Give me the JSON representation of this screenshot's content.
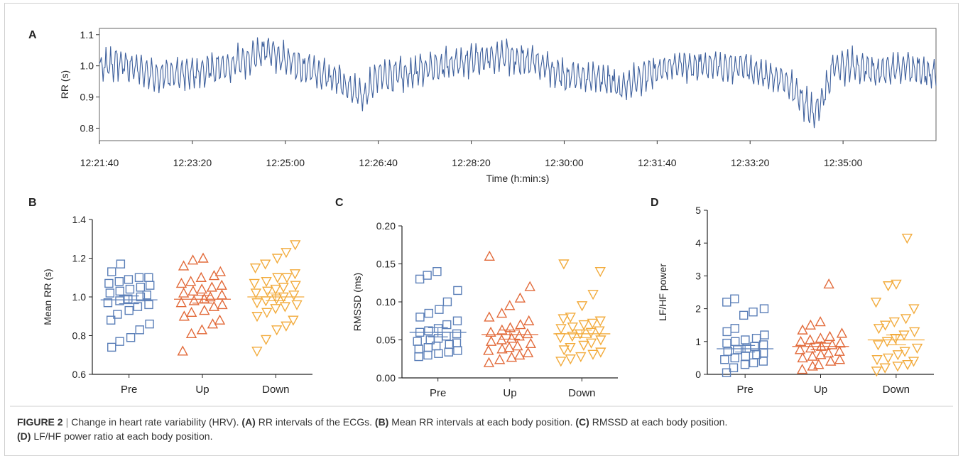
{
  "caption": {
    "figure_label": "FIGURE 2",
    "separator": "|",
    "title": "Change in heart rate variability (HRV).",
    "parts": [
      {
        "label": "(A)",
        "text": "RR intervals of the ECGs."
      },
      {
        "label": "(B)",
        "text": "Mean RR intervals at each body position."
      },
      {
        "label": "(C)",
        "text": "RMSSD at each body position."
      },
      {
        "label": "(D)",
        "text": "LF/HF power ratio at each body position."
      }
    ]
  },
  "colors": {
    "pre": "#5b7fb8",
    "up": "#e26a3a",
    "down": "#f2ab3c",
    "line": "#3d5f9c",
    "axis": "#222222"
  },
  "chart_data": [
    {
      "panel": "A",
      "type": "line",
      "xlabel": "Time (h:min:s)",
      "ylabel": "RR (s)",
      "xticks": [
        "12:21:40",
        "12:23:20",
        "12:25:00",
        "12:26:40",
        "12:28:20",
        "12:30:00",
        "12:31:40",
        "12:33:20",
        "12:35:00"
      ],
      "xlim_seconds_from_first_tick": [
        0,
        900
      ],
      "yticks": [
        "0.8",
        "0.9",
        "1.0",
        "1.1"
      ],
      "ylim": [
        0.76,
        1.12
      ],
      "trend_keypoints": {
        "t": [
          0,
          20,
          60,
          100,
          140,
          180,
          220,
          260,
          285,
          300,
          330,
          360,
          400,
          440,
          470,
          500,
          540,
          560,
          590,
          620,
          660,
          700,
          740,
          770,
          790,
          810,
          840,
          870,
          900
        ],
        "rr": [
          0.99,
          1.01,
          0.97,
          0.975,
          1.0,
          1.05,
          0.99,
          0.95,
          0.9,
          0.97,
          0.97,
          1.0,
          1.02,
          1.03,
          1.01,
          0.97,
          0.96,
          0.93,
          0.97,
          1.0,
          1.0,
          0.99,
          0.95,
          0.84,
          1.0,
          1.0,
          0.98,
          1.0,
          0.97
        ]
      },
      "grid": false
    },
    {
      "panel": "B",
      "type": "scatter",
      "ylabel": "Mean RR (s)",
      "categories": [
        "Pre",
        "Up",
        "Down"
      ],
      "ylim": [
        0.6,
        1.4
      ],
      "yticks": [
        "0.6",
        "0.8",
        "1.0",
        "1.2",
        "1.4"
      ],
      "series": [
        {
          "name": "Pre",
          "marker": "square",
          "mean": 0.985,
          "sem": 0.02,
          "values": [
            0.74,
            0.77,
            0.79,
            0.83,
            0.86,
            0.88,
            0.91,
            0.93,
            0.95,
            0.96,
            0.97,
            0.98,
            0.99,
            1.0,
            1.01,
            1.02,
            1.03,
            1.04,
            1.05,
            1.06,
            1.07,
            1.08,
            1.09,
            1.1,
            1.1,
            1.13,
            1.17
          ]
        },
        {
          "name": "Up",
          "marker": "triangle-up",
          "mean": 0.988,
          "sem": 0.02,
          "values": [
            0.72,
            0.81,
            0.83,
            0.86,
            0.88,
            0.9,
            0.92,
            0.93,
            0.95,
            0.96,
            0.97,
            0.98,
            0.99,
            1.0,
            1.01,
            1.02,
            1.03,
            1.04,
            1.05,
            1.06,
            1.07,
            1.08,
            1.1,
            1.11,
            1.13,
            1.16,
            1.19,
            1.2
          ]
        },
        {
          "name": "Down",
          "marker": "triangle-down",
          "mean": 1.0,
          "sem": 0.02,
          "values": [
            0.72,
            0.78,
            0.83,
            0.85,
            0.88,
            0.9,
            0.92,
            0.94,
            0.95,
            0.96,
            0.97,
            0.98,
            0.99,
            1.0,
            1.01,
            1.02,
            1.03,
            1.04,
            1.05,
            1.06,
            1.07,
            1.08,
            1.1,
            1.1,
            1.12,
            1.15,
            1.17,
            1.2,
            1.23,
            1.27
          ]
        }
      ]
    },
    {
      "panel": "C",
      "type": "scatter",
      "ylabel": "RMSSD (ms)",
      "categories": [
        "Pre",
        "Up",
        "Down"
      ],
      "ylim": [
        0.0,
        0.2
      ],
      "yticks": [
        "0.00",
        "0.05",
        "0.10",
        "0.15",
        "0.20"
      ],
      "series": [
        {
          "name": "Pre",
          "marker": "square",
          "mean": 0.06,
          "sem": 0.006,
          "values": [
            0.028,
            0.03,
            0.032,
            0.034,
            0.036,
            0.038,
            0.04,
            0.042,
            0.044,
            0.046,
            0.048,
            0.05,
            0.052,
            0.055,
            0.058,
            0.06,
            0.062,
            0.065,
            0.07,
            0.075,
            0.08,
            0.085,
            0.09,
            0.1,
            0.115,
            0.13,
            0.135,
            0.14
          ]
        },
        {
          "name": "Up",
          "marker": "triangle-up",
          "mean": 0.057,
          "sem": 0.006,
          "values": [
            0.02,
            0.024,
            0.027,
            0.03,
            0.033,
            0.036,
            0.038,
            0.04,
            0.042,
            0.045,
            0.048,
            0.05,
            0.052,
            0.055,
            0.058,
            0.06,
            0.063,
            0.066,
            0.07,
            0.075,
            0.08,
            0.085,
            0.095,
            0.105,
            0.12,
            0.16
          ]
        },
        {
          "name": "Down",
          "marker": "triangle-down",
          "mean": 0.058,
          "sem": 0.005,
          "values": [
            0.022,
            0.025,
            0.028,
            0.031,
            0.034,
            0.037,
            0.04,
            0.043,
            0.046,
            0.05,
            0.053,
            0.055,
            0.058,
            0.06,
            0.062,
            0.065,
            0.067,
            0.07,
            0.072,
            0.075,
            0.078,
            0.08,
            0.095,
            0.11,
            0.14,
            0.15
          ]
        }
      ]
    },
    {
      "panel": "D",
      "type": "scatter",
      "ylabel": "LF/HF power",
      "categories": [
        "Pre",
        "Up",
        "Down"
      ],
      "ylim": [
        0,
        5
      ],
      "yticks": [
        "0",
        "1",
        "2",
        "3",
        "4",
        "5"
      ],
      "series": [
        {
          "name": "Pre",
          "marker": "square",
          "mean": 0.78,
          "sem": 0.1,
          "values": [
            0.05,
            0.2,
            0.3,
            0.35,
            0.4,
            0.45,
            0.5,
            0.55,
            0.6,
            0.65,
            0.7,
            0.75,
            0.8,
            0.85,
            0.9,
            0.95,
            1.0,
            1.05,
            1.1,
            1.2,
            1.3,
            1.4,
            1.8,
            1.9,
            2.0,
            2.2,
            2.3
          ]
        },
        {
          "name": "Up",
          "marker": "triangle-up",
          "mean": 0.85,
          "sem": 0.1,
          "values": [
            0.15,
            0.25,
            0.3,
            0.4,
            0.45,
            0.5,
            0.55,
            0.6,
            0.65,
            0.7,
            0.75,
            0.8,
            0.85,
            0.9,
            0.95,
            1.0,
            1.05,
            1.1,
            1.15,
            1.25,
            1.35,
            1.5,
            1.6,
            2.75
          ]
        },
        {
          "name": "Down",
          "marker": "triangle-down",
          "mean": 1.05,
          "sem": 0.15,
          "values": [
            0.1,
            0.2,
            0.25,
            0.3,
            0.4,
            0.45,
            0.5,
            0.6,
            0.7,
            0.8,
            0.9,
            1.0,
            1.1,
            1.2,
            1.3,
            1.4,
            1.5,
            1.6,
            1.7,
            2.0,
            2.2,
            2.7,
            2.75,
            4.15
          ]
        }
      ]
    }
  ]
}
